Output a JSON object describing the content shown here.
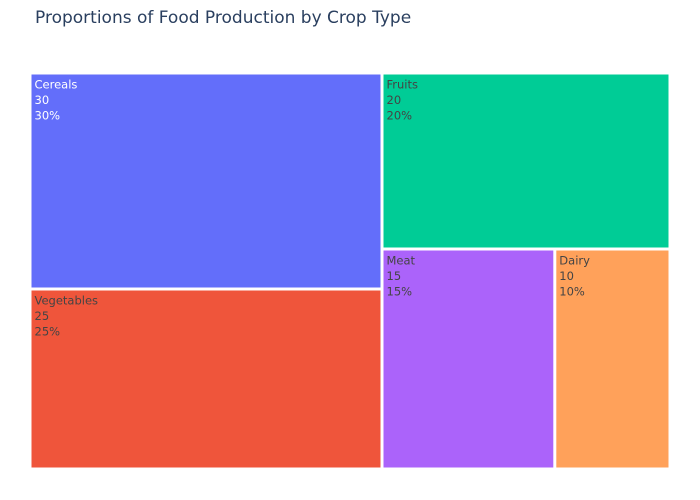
{
  "chart_data": {
    "type": "treemap",
    "title": "Proportions of Food Production by Crop Type",
    "items": [
      {
        "label": "Cereals",
        "value": 30,
        "percent": "30%",
        "color": "#636efa",
        "text_color": "#ffffff"
      },
      {
        "label": "Vegetables",
        "value": 25,
        "percent": "25%",
        "color": "#ef553b",
        "text_color": "#444444"
      },
      {
        "label": "Fruits",
        "value": 20,
        "percent": "20%",
        "color": "#00cc96",
        "text_color": "#444444"
      },
      {
        "label": "Meat",
        "value": 15,
        "percent": "15%",
        "color": "#ab63fa",
        "text_color": "#444444"
      },
      {
        "label": "Dairy",
        "value": 10,
        "percent": "10%",
        "color": "#ffa15a",
        "text_color": "#444444"
      }
    ]
  }
}
